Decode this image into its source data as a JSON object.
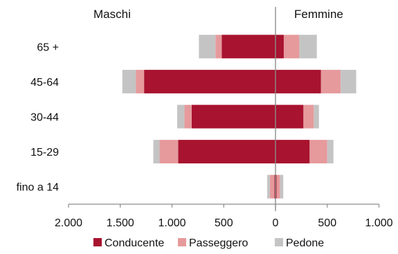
{
  "chart_data": {
    "type": "bar",
    "orientation": "horizontal",
    "layout": "population-pyramid",
    "side_labels": {
      "left": "Maschi",
      "right": "Femmine"
    },
    "categories": [
      "65 +",
      "45-64",
      "30-44",
      "15-29",
      "fino a 14"
    ],
    "x_ticks": [
      "2.000",
      "1.500",
      "1.000",
      "500",
      "0",
      "500",
      "1.000"
    ],
    "xlim": [
      -2000,
      1000
    ],
    "series": [
      {
        "name": "Conducente",
        "color": "#a8132f",
        "left_values": [
          520,
          1270,
          810,
          940,
          10
        ],
        "right_values": [
          80,
          440,
          270,
          330,
          10
        ]
      },
      {
        "name": "Passeggero",
        "color": "#e69a9c",
        "left_values": [
          60,
          80,
          70,
          180,
          45
        ],
        "right_values": [
          150,
          190,
          100,
          170,
          35
        ]
      },
      {
        "name": "Pedone",
        "color": "#c4c4c4",
        "left_values": [
          160,
          130,
          70,
          60,
          25
        ],
        "right_values": [
          170,
          150,
          50,
          60,
          30
        ]
      }
    ],
    "legend_position": "bottom",
    "grid": false
  }
}
